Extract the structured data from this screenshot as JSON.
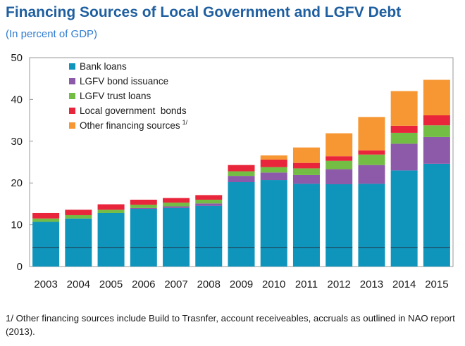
{
  "header": {
    "title": "Financing Sources of Local Government and LGFV Debt",
    "subtitle": "(In percent of GDP)"
  },
  "footnote": "1/ Other financing sources include Build to Trasnfer, account receiveables, accruals as outlined in NAO report (2013).",
  "chart_data": {
    "type": "bar",
    "stacked": true,
    "title": "Financing Sources of Local Government and LGFV Debt",
    "subtitle": "(In percent of GDP)",
    "categories": [
      "2003",
      "2004",
      "2005",
      "2006",
      "2007",
      "2008",
      "2009",
      "2010",
      "2011",
      "2012",
      "2013",
      "2014",
      "2015"
    ],
    "ylim": [
      0,
      50
    ],
    "yticks": [
      0,
      10,
      20,
      30,
      40,
      50
    ],
    "grid": false,
    "legend_position": "top-left",
    "series": [
      {
        "name": "Bank loans",
        "color": "#0f94bb",
        "values": [
          10.7,
          11.5,
          12.8,
          13.8,
          14.0,
          14.5,
          20.2,
          20.7,
          19.8,
          19.7,
          19.8,
          23.0,
          24.6
        ]
      },
      {
        "name": "LGFV bond issuance",
        "color": "#8c5aa8",
        "values": [
          0.0,
          0.0,
          0.0,
          0.2,
          0.4,
          0.6,
          1.5,
          1.8,
          2.1,
          3.6,
          4.5,
          6.4,
          6.4
        ]
      },
      {
        "name": "LGFV trust loans",
        "color": "#73bd44",
        "values": [
          0.8,
          0.8,
          0.8,
          0.8,
          0.9,
          0.9,
          1.1,
          1.3,
          1.6,
          2.0,
          2.5,
          2.6,
          2.8
        ]
      },
      {
        "name": "Local government  bonds",
        "color": "#e8253a",
        "values": [
          1.3,
          1.3,
          1.3,
          1.2,
          1.1,
          1.1,
          1.5,
          1.8,
          1.3,
          1.1,
          1.0,
          1.7,
          2.4
        ]
      },
      {
        "name": "Other financing sources",
        "sup": "1/",
        "color": "#f79733",
        "values": [
          0.0,
          0.0,
          0.0,
          0.0,
          0.0,
          0.0,
          0.0,
          1.0,
          3.7,
          5.5,
          8.0,
          8.3,
          8.5
        ]
      }
    ]
  }
}
